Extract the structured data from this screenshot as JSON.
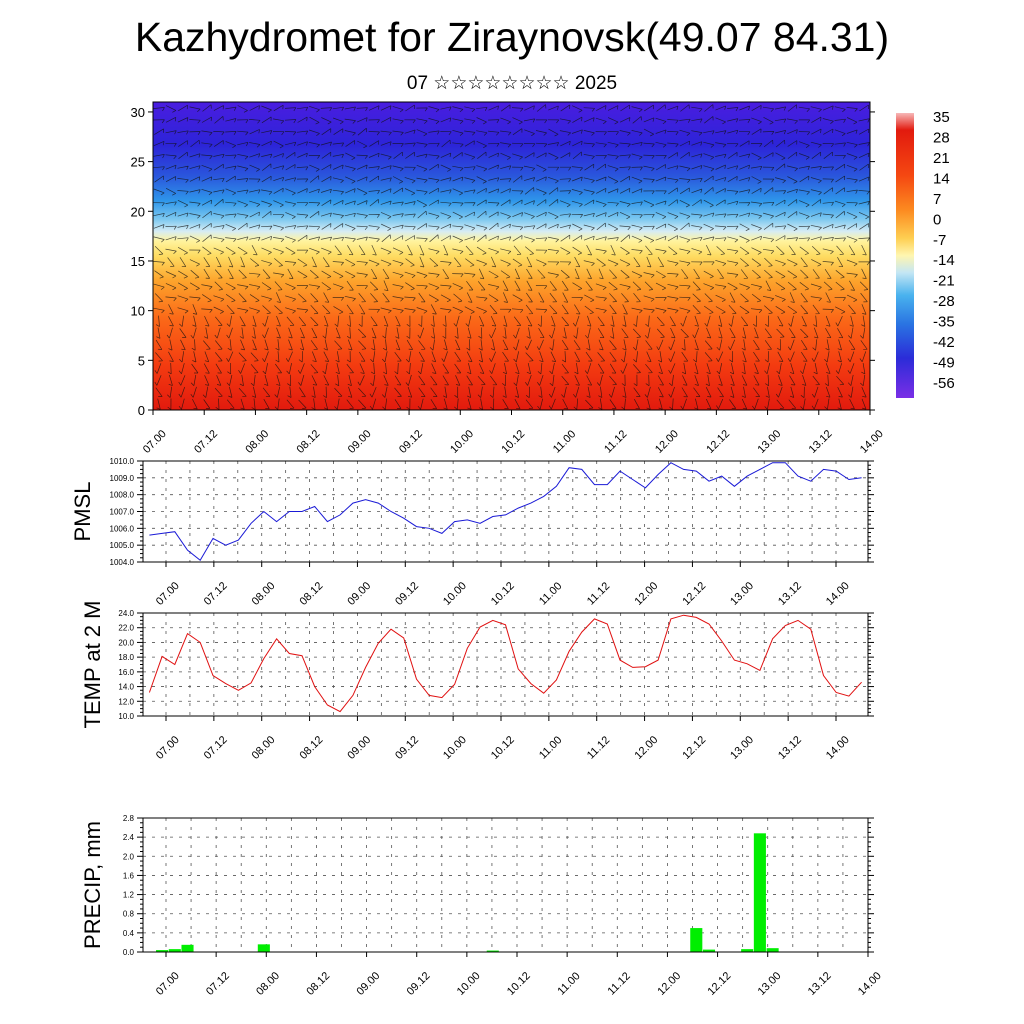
{
  "title": "Kazhydromet for Ziraynovsk(49.07 84.31)",
  "subtitle": "07 ☆☆☆☆☆☆☆☆ 2025",
  "colors": {
    "pmsl_line": "#1a1ad6",
    "temp_line": "#e01010",
    "precip_bar": "#00ee00",
    "grid": "#555555"
  },
  "chart_data": [
    {
      "type": "heatmap",
      "name": "cross-section",
      "x_ticks": [
        "07.00",
        "07.12",
        "08.00",
        "08.12",
        "09.00",
        "09.12",
        "10.00",
        "10.12",
        "11.00",
        "11.12",
        "12.00",
        "12.12",
        "13.00",
        "13.12",
        "14.00"
      ],
      "y_ticks": [
        "0",
        "5",
        "10",
        "15",
        "20",
        "25",
        "30"
      ],
      "ylim": [
        0,
        31
      ],
      "colorbar_labels": [
        "35",
        "28",
        "21",
        "14",
        "7",
        "0",
        "-7",
        "-14",
        "-21",
        "-28",
        "-35",
        "-42",
        "-49",
        "-56"
      ],
      "colorbar_range": [
        -63,
        42
      ],
      "overlay": "wind barbs"
    },
    {
      "type": "line",
      "ylabel": "PMSL",
      "y_ticks": [
        "1004.0",
        "1005.0",
        "1006.0",
        "1007.0",
        "1008.0",
        "1009.0",
        "1010.0"
      ],
      "ylim": [
        1004.0,
        1010.0
      ],
      "x_ticks": [
        "07.00",
        "07.12",
        "08.00",
        "08.12",
        "09.00",
        "09.12",
        "10.00",
        "10.12",
        "11.00",
        "11.12",
        "12.00",
        "12.12",
        "13.00",
        "13.12",
        "14.00"
      ],
      "values": [
        1005.6,
        1005.7,
        1005.8,
        1004.7,
        1004.1,
        1005.4,
        1005.0,
        1005.3,
        1006.3,
        1007.0,
        1006.4,
        1007.0,
        1007.0,
        1007.3,
        1006.4,
        1006.8,
        1007.5,
        1007.7,
        1007.5,
        1007.0,
        1006.6,
        1006.1,
        1006.0,
        1005.7,
        1006.4,
        1006.5,
        1006.3,
        1006.7,
        1006.8,
        1007.2,
        1007.5,
        1007.9,
        1008.5,
        1009.6,
        1009.5,
        1008.6,
        1008.6,
        1009.4,
        1008.9,
        1008.4,
        1009.2,
        1009.9,
        1009.5,
        1009.4,
        1008.8,
        1009.1,
        1008.5,
        1009.1,
        1009.5,
        1009.9,
        1009.9,
        1009.1,
        1008.8,
        1009.5,
        1009.4,
        1008.9,
        1009.0
      ]
    },
    {
      "type": "line",
      "ylabel": "TEMP at 2 M",
      "y_ticks": [
        "10.0",
        "12.0",
        "14.0",
        "16.0",
        "18.0",
        "20.0",
        "22.0",
        "24.0"
      ],
      "ylim": [
        10.0,
        24.0
      ],
      "x_ticks": [
        "07.00",
        "07.12",
        "08.00",
        "08.12",
        "09.00",
        "09.12",
        "10.00",
        "10.12",
        "11.00",
        "11.12",
        "12.00",
        "12.12",
        "13.00",
        "13.12",
        "14.00"
      ],
      "values": [
        13.2,
        18.1,
        17.0,
        21.2,
        20.0,
        15.5,
        14.4,
        13.5,
        14.5,
        17.8,
        20.5,
        18.5,
        18.2,
        14.0,
        11.5,
        10.6,
        12.8,
        16.6,
        19.9,
        21.8,
        20.6,
        15.0,
        12.8,
        12.5,
        14.3,
        19.2,
        22.1,
        23.0,
        22.4,
        16.4,
        14.4,
        13.1,
        14.9,
        18.8,
        21.4,
        23.2,
        22.5,
        17.6,
        16.6,
        16.7,
        17.6,
        23.2,
        23.7,
        23.4,
        22.5,
        20.2,
        17.6,
        17.1,
        16.2,
        20.5,
        22.3,
        23.0,
        21.8,
        15.5,
        13.2,
        12.7,
        14.6
      ]
    },
    {
      "type": "bar",
      "ylabel": "PRECIP, mm",
      "y_ticks": [
        "0.0",
        "0.4",
        "0.8",
        "1.2",
        "1.6",
        "2.0",
        "2.4",
        "2.8"
      ],
      "ylim": [
        0.0,
        2.8
      ],
      "x_ticks": [
        "07.00",
        "07.12",
        "08.00",
        "08.12",
        "09.00",
        "09.12",
        "10.00",
        "10.12",
        "11.00",
        "11.12",
        "12.00",
        "12.12",
        "13.00",
        "13.12",
        "14.00"
      ],
      "values": [
        0,
        0.04,
        0.06,
        0.15,
        0,
        0,
        0,
        0,
        0,
        0.16,
        0,
        0,
        0,
        0,
        0,
        0,
        0,
        0,
        0,
        0,
        0,
        0,
        0,
        0,
        0,
        0,
        0,
        0.03,
        0,
        0,
        0,
        0,
        0,
        0,
        0,
        0,
        0,
        0,
        0,
        0,
        0,
        0,
        0,
        0.5,
        0.05,
        0,
        0,
        0.06,
        2.48,
        0.08,
        0,
        0,
        0,
        0,
        0,
        0,
        0
      ]
    }
  ]
}
